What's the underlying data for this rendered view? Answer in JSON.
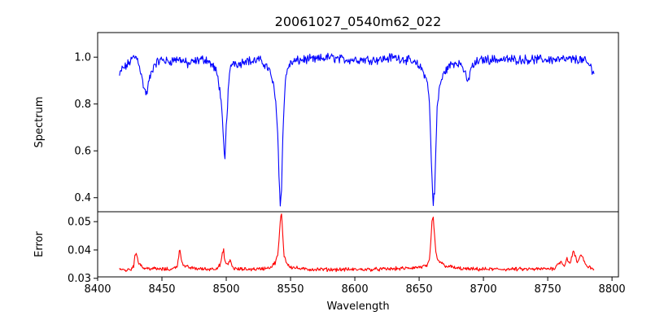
{
  "chart_data": [
    {
      "type": "line",
      "title": "20061027_0540m62_022",
      "xlabel": "",
      "ylabel": "Spectrum",
      "xlim": [
        8400,
        8805
      ],
      "ylim": [
        0.34,
        1.105
      ],
      "yticks": [
        0.4,
        0.6,
        0.8,
        1.0
      ],
      "ytick_labels": [
        "0.4",
        "0.6",
        "0.8",
        "1.0"
      ],
      "grid": false,
      "series": [
        {
          "name": "",
          "color": "#0000ff",
          "noise_amplitude": 0.03,
          "x": [
            8417,
            8419,
            8422,
            8425,
            8428,
            8430,
            8432,
            8434,
            8436,
            8438,
            8440,
            8444,
            8450,
            8455,
            8460,
            8465,
            8470,
            8475,
            8480,
            8485,
            8488,
            8490,
            8492,
            8494,
            8496,
            8497,
            8498,
            8499,
            8500,
            8502,
            8504,
            8506,
            8510,
            8515,
            8520,
            8525,
            8530,
            8533,
            8536,
            8538,
            8539,
            8540,
            8541,
            8542,
            8543,
            8544,
            8545,
            8546,
            8548,
            8552,
            8560,
            8570,
            8580,
            8590,
            8600,
            8610,
            8620,
            8630,
            8640,
            8648,
            8652,
            8655,
            8657,
            8658,
            8659,
            8660,
            8661,
            8662,
            8663,
            8664,
            8666,
            8670,
            8675,
            8680,
            8684,
            8686,
            8688,
            8690,
            8695,
            8700,
            8710,
            8720,
            8730,
            8740,
            8750,
            8760,
            8770,
            8775,
            8780,
            8783,
            8786
          ],
          "y": [
            0.92,
            0.95,
            0.96,
            0.98,
            1.0,
            1.0,
            0.98,
            0.92,
            0.87,
            0.84,
            0.9,
            0.97,
            0.99,
            0.98,
            0.99,
            0.99,
            0.97,
            0.98,
            0.99,
            0.99,
            0.97,
            0.96,
            0.94,
            0.9,
            0.82,
            0.72,
            0.62,
            0.56,
            0.7,
            0.9,
            0.97,
            0.98,
            0.97,
            0.99,
            0.98,
            0.99,
            0.97,
            0.95,
            0.9,
            0.83,
            0.78,
            0.68,
            0.5,
            0.37,
            0.45,
            0.65,
            0.8,
            0.9,
            0.96,
            0.98,
            0.99,
            0.99,
            1.0,
            0.99,
            0.99,
            0.99,
            0.99,
            1.0,
            0.99,
            0.97,
            0.95,
            0.92,
            0.87,
            0.8,
            0.65,
            0.48,
            0.38,
            0.42,
            0.6,
            0.78,
            0.88,
            0.94,
            0.97,
            0.98,
            0.96,
            0.92,
            0.89,
            0.95,
            0.98,
            0.99,
            0.99,
            0.99,
            0.99,
            0.99,
            0.99,
            0.99,
            0.99,
            0.99,
            0.98,
            0.96,
            0.94
          ]
        }
      ]
    },
    {
      "type": "line",
      "title": "",
      "xlabel": "Wavelength",
      "ylabel": "Error",
      "xlim": [
        8400,
        8805
      ],
      "ylim": [
        0.0305,
        0.0535
      ],
      "xticks": [
        8400,
        8450,
        8500,
        8550,
        8600,
        8650,
        8700,
        8750,
        8800
      ],
      "xtick_labels": [
        "8400",
        "8450",
        "8500",
        "8550",
        "8600",
        "8650",
        "8700",
        "8750",
        "8800"
      ],
      "yticks": [
        0.03,
        0.04,
        0.05
      ],
      "ytick_labels": [
        "0.03",
        "0.04",
        "0.05"
      ],
      "grid": false,
      "series": [
        {
          "name": "",
          "color": "#ff0000",
          "noise_amplitude": 0.001,
          "x": [
            8417,
            8422,
            8426,
            8428,
            8429,
            8430,
            8432,
            8436,
            8440,
            8450,
            8458,
            8462,
            8463,
            8464,
            8465,
            8467,
            8475,
            8485,
            8492,
            8495,
            8496,
            8497,
            8498,
            8499,
            8501,
            8503,
            8505,
            8508,
            8515,
            8525,
            8530,
            8535,
            8538,
            8540,
            8541,
            8542,
            8543,
            8544,
            8545,
            8547,
            8550,
            8560,
            8580,
            8600,
            8620,
            8640,
            8652,
            8656,
            8658,
            8659,
            8660,
            8661,
            8662,
            8663,
            8664,
            8666,
            8670,
            8680,
            8690,
            8700,
            8720,
            8740,
            8755,
            8760,
            8763,
            8765,
            8767,
            8770,
            8773,
            8776,
            8780,
            8786
          ],
          "y": [
            0.0333,
            0.0328,
            0.0333,
            0.0345,
            0.0375,
            0.039,
            0.0355,
            0.0335,
            0.0335,
            0.0332,
            0.0332,
            0.0345,
            0.038,
            0.0402,
            0.037,
            0.0342,
            0.0335,
            0.0332,
            0.0335,
            0.0345,
            0.036,
            0.0385,
            0.0398,
            0.036,
            0.0345,
            0.0365,
            0.0338,
            0.0332,
            0.0332,
            0.0333,
            0.0335,
            0.034,
            0.0355,
            0.038,
            0.043,
            0.05,
            0.053,
            0.045,
            0.038,
            0.0355,
            0.034,
            0.0332,
            0.0331,
            0.0331,
            0.0332,
            0.0335,
            0.034,
            0.0345,
            0.036,
            0.042,
            0.05,
            0.0515,
            0.045,
            0.039,
            0.037,
            0.0358,
            0.0345,
            0.0335,
            0.0332,
            0.0332,
            0.0332,
            0.0332,
            0.0335,
            0.036,
            0.0345,
            0.0372,
            0.035,
            0.0395,
            0.0355,
            0.0385,
            0.0345,
            0.0332
          ]
        }
      ]
    }
  ]
}
